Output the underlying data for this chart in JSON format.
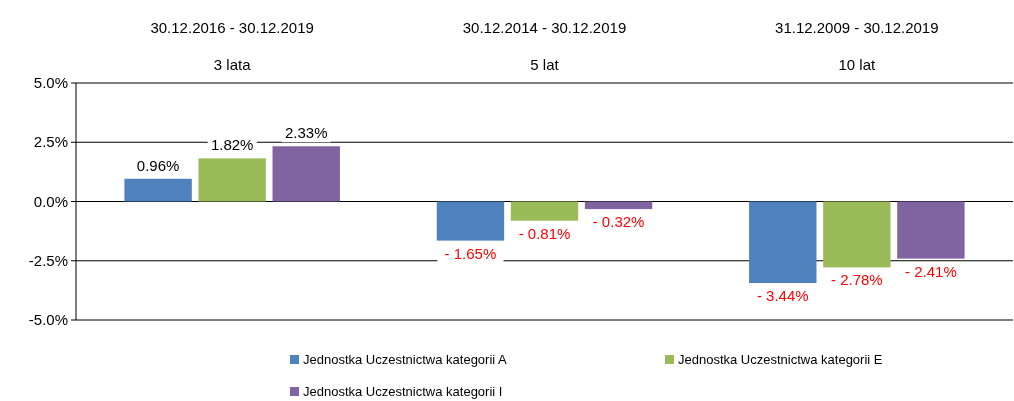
{
  "chart_data": {
    "type": "bar",
    "categories": [
      "30.12.2016 - 30.12.2019\n3 lata",
      "30.12.2014 - 30.12.2019\n5 lat",
      "31.12.2009 - 30.12.2019\n10 lat"
    ],
    "series": [
      {
        "name": "Jednostka Uczestnictwa kategorii A",
        "color": "#4f81bd",
        "values": [
          0.96,
          -1.65,
          -3.44
        ],
        "value_labels": [
          "0.96%",
          "- 1.65%",
          "- 3.44%"
        ]
      },
      {
        "name": "Jednostka Uczestnictwa kategorii E",
        "color": "#9bbb59",
        "values": [
          1.82,
          -0.81,
          -2.78
        ],
        "value_labels": [
          "1.82%",
          "- 0.81%",
          "- 2.78%"
        ]
      },
      {
        "name": "Jednostka Uczestnictwa kategorii I",
        "color": "#8064a2",
        "values": [
          2.33,
          -0.32,
          -2.41
        ],
        "value_labels": [
          "2.33%",
          "- 0.32%",
          "- 2.41%"
        ]
      }
    ],
    "ylim": [
      -5,
      5
    ],
    "yticks": [
      {
        "value": -5,
        "label": "-5.0%"
      },
      {
        "value": -2.5,
        "label": "-2.5%"
      },
      {
        "value": 0,
        "label": "0.0%"
      },
      {
        "value": 2.5,
        "label": "2.5%"
      },
      {
        "value": 5,
        "label": "5.0%"
      }
    ],
    "grid": "y",
    "legend": "bottom"
  }
}
